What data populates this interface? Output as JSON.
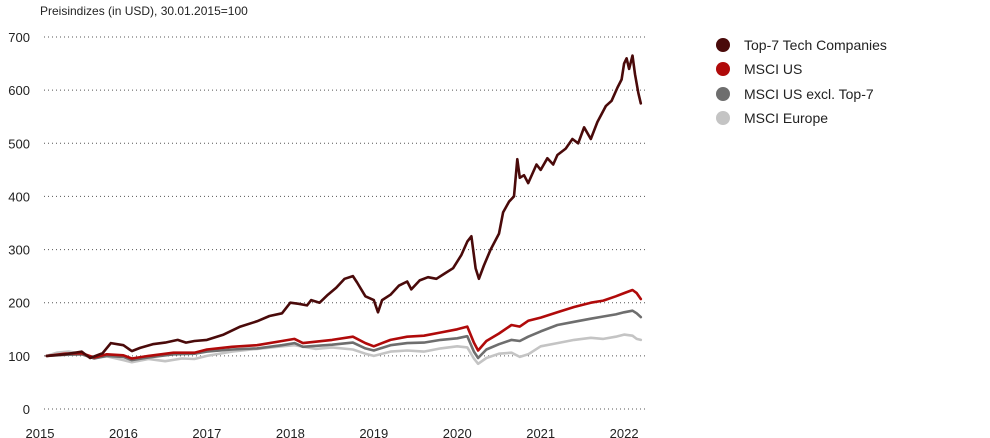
{
  "chart_data": {
    "type": "line",
    "title": "",
    "subtitle": "Preisindizes (in USD), 30.01.2015=100",
    "xlabel": "",
    "ylabel": "",
    "xlim": [
      2015.0,
      2022.25
    ],
    "ylim": [
      0,
      700
    ],
    "y_ticks": [
      0,
      100,
      200,
      300,
      400,
      500,
      600,
      700
    ],
    "x_ticks": [
      "2015",
      "2016",
      "2017",
      "2018",
      "2019",
      "2020",
      "2021",
      "2022"
    ],
    "grid": "horizontal dotted",
    "legend_position": "right",
    "series": [
      {
        "name": "Top-7 Tech Companies",
        "color": "#4a0a0a",
        "points": [
          [
            2015.08,
            100
          ],
          [
            2015.3,
            103
          ],
          [
            2015.5,
            108
          ],
          [
            2015.6,
            96
          ],
          [
            2015.75,
            105
          ],
          [
            2015.85,
            124
          ],
          [
            2016.0,
            120
          ],
          [
            2016.1,
            109
          ],
          [
            2016.2,
            115
          ],
          [
            2016.35,
            122
          ],
          [
            2016.5,
            125
          ],
          [
            2016.65,
            130
          ],
          [
            2016.75,
            125
          ],
          [
            2016.85,
            128
          ],
          [
            2017.0,
            130
          ],
          [
            2017.2,
            140
          ],
          [
            2017.4,
            155
          ],
          [
            2017.6,
            165
          ],
          [
            2017.75,
            175
          ],
          [
            2017.9,
            180
          ],
          [
            2018.0,
            200
          ],
          [
            2018.1,
            198
          ],
          [
            2018.2,
            195
          ],
          [
            2018.25,
            205
          ],
          [
            2018.35,
            200
          ],
          [
            2018.45,
            215
          ],
          [
            2018.55,
            228
          ],
          [
            2018.65,
            245
          ],
          [
            2018.75,
            250
          ],
          [
            2018.8,
            238
          ],
          [
            2018.9,
            212
          ],
          [
            2019.0,
            205
          ],
          [
            2019.05,
            182
          ],
          [
            2019.1,
            205
          ],
          [
            2019.2,
            215
          ],
          [
            2019.3,
            232
          ],
          [
            2019.4,
            240
          ],
          [
            2019.45,
            225
          ],
          [
            2019.55,
            242
          ],
          [
            2019.65,
            248
          ],
          [
            2019.75,
            245
          ],
          [
            2019.85,
            255
          ],
          [
            2019.95,
            265
          ],
          [
            2020.05,
            290
          ],
          [
            2020.12,
            315
          ],
          [
            2020.17,
            325
          ],
          [
            2020.22,
            265
          ],
          [
            2020.26,
            245
          ],
          [
            2020.32,
            270
          ],
          [
            2020.4,
            300
          ],
          [
            2020.5,
            330
          ],
          [
            2020.55,
            370
          ],
          [
            2020.62,
            390
          ],
          [
            2020.68,
            400
          ],
          [
            2020.72,
            470
          ],
          [
            2020.75,
            435
          ],
          [
            2020.8,
            440
          ],
          [
            2020.85,
            425
          ],
          [
            2020.95,
            460
          ],
          [
            2021.0,
            450
          ],
          [
            2021.08,
            472
          ],
          [
            2021.15,
            460
          ],
          [
            2021.2,
            478
          ],
          [
            2021.3,
            490
          ],
          [
            2021.38,
            508
          ],
          [
            2021.45,
            500
          ],
          [
            2021.52,
            530
          ],
          [
            2021.6,
            508
          ],
          [
            2021.68,
            540
          ],
          [
            2021.78,
            570
          ],
          [
            2021.85,
            580
          ],
          [
            2021.92,
            605
          ],
          [
            2021.97,
            620
          ],
          [
            2022.0,
            650
          ],
          [
            2022.03,
            660
          ],
          [
            2022.06,
            640
          ],
          [
            2022.1,
            665
          ],
          [
            2022.13,
            630
          ],
          [
            2022.17,
            595
          ],
          [
            2022.2,
            575
          ]
        ]
      },
      {
        "name": "MSCI US",
        "color": "#b00a0a",
        "points": [
          [
            2015.08,
            100
          ],
          [
            2015.3,
            104
          ],
          [
            2015.5,
            105
          ],
          [
            2015.65,
            97
          ],
          [
            2015.8,
            103
          ],
          [
            2016.0,
            101
          ],
          [
            2016.1,
            95
          ],
          [
            2016.3,
            100
          ],
          [
            2016.6,
            106
          ],
          [
            2016.85,
            106
          ],
          [
            2017.0,
            112
          ],
          [
            2017.3,
            117
          ],
          [
            2017.6,
            120
          ],
          [
            2017.9,
            128
          ],
          [
            2018.05,
            132
          ],
          [
            2018.15,
            124
          ],
          [
            2018.5,
            130
          ],
          [
            2018.75,
            136
          ],
          [
            2018.9,
            124
          ],
          [
            2019.0,
            118
          ],
          [
            2019.2,
            130
          ],
          [
            2019.4,
            136
          ],
          [
            2019.6,
            138
          ],
          [
            2019.8,
            144
          ],
          [
            2020.0,
            150
          ],
          [
            2020.12,
            155
          ],
          [
            2020.2,
            125
          ],
          [
            2020.25,
            110
          ],
          [
            2020.35,
            128
          ],
          [
            2020.5,
            142
          ],
          [
            2020.65,
            158
          ],
          [
            2020.75,
            155
          ],
          [
            2020.85,
            166
          ],
          [
            2021.0,
            172
          ],
          [
            2021.2,
            182
          ],
          [
            2021.4,
            192
          ],
          [
            2021.6,
            200
          ],
          [
            2021.75,
            204
          ],
          [
            2021.9,
            212
          ],
          [
            2022.0,
            218
          ],
          [
            2022.1,
            224
          ],
          [
            2022.15,
            218
          ],
          [
            2022.2,
            207
          ]
        ]
      },
      {
        "name": "MSCI US excl. Top-7",
        "color": "#6e6e6e",
        "points": [
          [
            2015.08,
            100
          ],
          [
            2015.3,
            102
          ],
          [
            2015.5,
            103
          ],
          [
            2015.65,
            95
          ],
          [
            2015.8,
            100
          ],
          [
            2016.0,
            98
          ],
          [
            2016.1,
            92
          ],
          [
            2016.3,
            97
          ],
          [
            2016.6,
            103
          ],
          [
            2016.85,
            104
          ],
          [
            2017.0,
            108
          ],
          [
            2017.3,
            112
          ],
          [
            2017.6,
            114
          ],
          [
            2017.9,
            120
          ],
          [
            2018.05,
            124
          ],
          [
            2018.15,
            117
          ],
          [
            2018.5,
            121
          ],
          [
            2018.75,
            125
          ],
          [
            2018.9,
            114
          ],
          [
            2019.0,
            110
          ],
          [
            2019.2,
            120
          ],
          [
            2019.4,
            124
          ],
          [
            2019.6,
            125
          ],
          [
            2019.8,
            130
          ],
          [
            2020.0,
            133
          ],
          [
            2020.12,
            137
          ],
          [
            2020.2,
            108
          ],
          [
            2020.25,
            96
          ],
          [
            2020.35,
            112
          ],
          [
            2020.5,
            122
          ],
          [
            2020.65,
            130
          ],
          [
            2020.75,
            128
          ],
          [
            2020.85,
            136
          ],
          [
            2021.0,
            146
          ],
          [
            2021.2,
            158
          ],
          [
            2021.4,
            164
          ],
          [
            2021.6,
            170
          ],
          [
            2021.75,
            174
          ],
          [
            2021.9,
            178
          ],
          [
            2022.0,
            182
          ],
          [
            2022.1,
            185
          ],
          [
            2022.15,
            180
          ],
          [
            2022.2,
            173
          ]
        ]
      },
      {
        "name": "MSCI Europe",
        "color": "#c4c4c4",
        "points": [
          [
            2015.08,
            100
          ],
          [
            2015.2,
            106
          ],
          [
            2015.35,
            108
          ],
          [
            2015.5,
            104
          ],
          [
            2015.65,
            96
          ],
          [
            2015.8,
            99
          ],
          [
            2016.0,
            92
          ],
          [
            2016.1,
            88
          ],
          [
            2016.3,
            94
          ],
          [
            2016.5,
            90
          ],
          [
            2016.7,
            95
          ],
          [
            2016.85,
            94
          ],
          [
            2017.0,
            100
          ],
          [
            2017.3,
            108
          ],
          [
            2017.6,
            113
          ],
          [
            2017.9,
            118
          ],
          [
            2018.05,
            120
          ],
          [
            2018.3,
            113
          ],
          [
            2018.5,
            116
          ],
          [
            2018.75,
            112
          ],
          [
            2018.9,
            104
          ],
          [
            2019.0,
            100
          ],
          [
            2019.2,
            108
          ],
          [
            2019.4,
            110
          ],
          [
            2019.6,
            108
          ],
          [
            2019.8,
            114
          ],
          [
            2020.0,
            118
          ],
          [
            2020.12,
            116
          ],
          [
            2020.2,
            95
          ],
          [
            2020.25,
            85
          ],
          [
            2020.35,
            96
          ],
          [
            2020.5,
            104
          ],
          [
            2020.65,
            106
          ],
          [
            2020.75,
            98
          ],
          [
            2020.85,
            103
          ],
          [
            2021.0,
            118
          ],
          [
            2021.2,
            124
          ],
          [
            2021.4,
            130
          ],
          [
            2021.6,
            134
          ],
          [
            2021.75,
            132
          ],
          [
            2021.9,
            136
          ],
          [
            2022.0,
            140
          ],
          [
            2022.1,
            138
          ],
          [
            2022.15,
            132
          ],
          [
            2022.2,
            130
          ]
        ]
      }
    ]
  }
}
